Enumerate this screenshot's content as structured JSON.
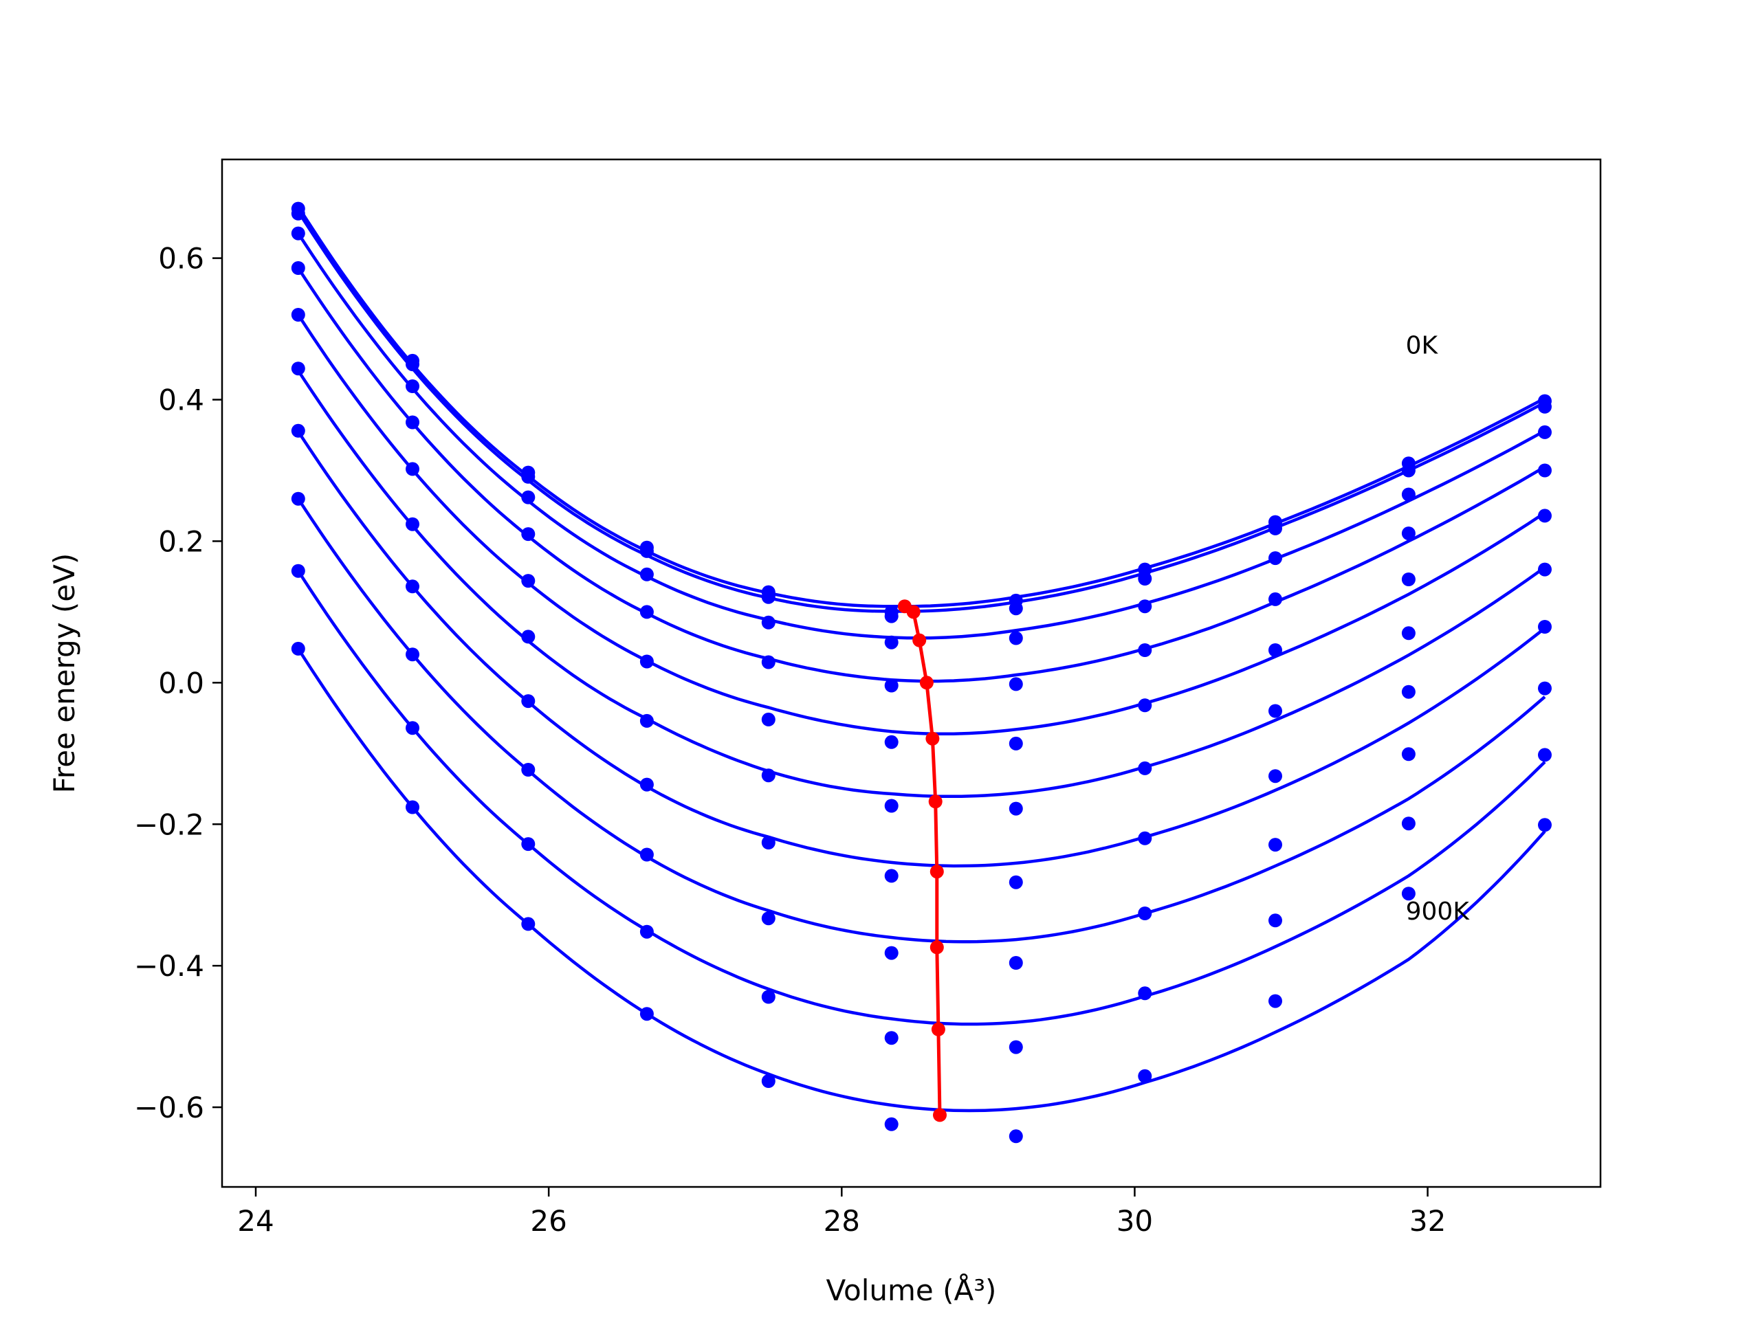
{
  "chart_data": {
    "type": "line",
    "xlabel": "Volume (Å³)",
    "ylabel": "Free energy (eV)",
    "xlim": [
      23.77,
      33.18
    ],
    "ylim": [
      -0.7126,
      0.7395
    ],
    "xticks": [
      24,
      26,
      28,
      30,
      32
    ],
    "yticks": [
      -0.6,
      -0.4,
      -0.2,
      0.0,
      0.2,
      0.4,
      0.6
    ],
    "xtick_labels": [
      "24",
      "26",
      "28",
      "30",
      "32"
    ],
    "ytick_labels": [
      "−0.6",
      "−0.4",
      "−0.2",
      "0.0",
      "0.2",
      "0.4",
      "0.6"
    ],
    "grid": false,
    "colors": {
      "curve": "#0000ff",
      "minimum_path": "#ff0000",
      "frame": "#000000"
    },
    "annotations": [
      {
        "text": "0K",
        "x": 31.85,
        "y": 0.465
      },
      {
        "text": "900K",
        "x": 31.85,
        "y": -0.335
      }
    ],
    "volumes": [
      24.29,
      25.07,
      25.86,
      26.67,
      27.5,
      28.34,
      29.19,
      30.07,
      30.96,
      31.87,
      32.8
    ],
    "series": [
      {
        "values": [
          0.67,
          0.455,
          0.297,
          0.191,
          0.128,
          0.1,
          0.116,
          0.16,
          0.227,
          0.31,
          0.398
        ],
        "fit": [
          0.673,
          0.45,
          0.292,
          0.186,
          0.127,
          0.108,
          0.121,
          0.162,
          0.225,
          0.306,
          0.402
        ],
        "min": [
          28.43,
          0.108
        ]
      },
      {
        "values": [
          0.663,
          0.45,
          0.291,
          0.186,
          0.121,
          0.094,
          0.105,
          0.147,
          0.218,
          0.3,
          0.39
        ],
        "fit": [
          0.666,
          0.444,
          0.286,
          0.18,
          0.12,
          0.101,
          0.114,
          0.155,
          0.219,
          0.3,
          0.396
        ],
        "min": [
          28.49,
          0.1
        ]
      },
      {
        "values": [
          0.635,
          0.419,
          0.262,
          0.153,
          0.085,
          0.057,
          0.063,
          0.108,
          0.176,
          0.266,
          0.354
        ],
        "fit": [
          0.635,
          0.416,
          0.257,
          0.15,
          0.089,
          0.064,
          0.074,
          0.112,
          0.175,
          0.257,
          0.356
        ],
        "min": [
          28.53,
          0.06
        ]
      },
      {
        "values": [
          0.586,
          0.368,
          0.21,
          0.1,
          0.029,
          -0.004,
          -0.002,
          0.046,
          0.118,
          0.211,
          0.3
        ],
        "fit": [
          0.586,
          0.367,
          0.207,
          0.098,
          0.034,
          0.004,
          0.011,
          0.048,
          0.114,
          0.2,
          0.305
        ],
        "min": [
          28.58,
          0.0
        ]
      },
      {
        "values": [
          0.52,
          0.302,
          0.144,
          0.03,
          -0.052,
          -0.084,
          -0.086,
          -0.032,
          0.046,
          0.146,
          0.236
        ],
        "fit": [
          0.52,
          0.301,
          0.141,
          0.031,
          -0.035,
          -0.069,
          -0.066,
          -0.029,
          0.037,
          0.125,
          0.24
        ],
        "min": [
          28.62,
          -0.079
        ]
      },
      {
        "values": [
          0.444,
          0.224,
          0.065,
          -0.054,
          -0.131,
          -0.174,
          -0.178,
          -0.121,
          -0.04,
          0.07,
          0.16
        ],
        "fit": [
          0.441,
          0.222,
          0.059,
          -0.051,
          -0.125,
          -0.157,
          -0.156,
          -0.119,
          -0.053,
          0.039,
          0.163
        ],
        "min": [
          28.64,
          -0.168
        ]
      },
      {
        "values": [
          0.356,
          0.136,
          -0.026,
          -0.144,
          -0.226,
          -0.273,
          -0.282,
          -0.22,
          -0.132,
          -0.013,
          0.079
        ],
        "fit": [
          0.355,
          0.136,
          -0.027,
          -0.147,
          -0.218,
          -0.254,
          -0.255,
          -0.218,
          -0.152,
          -0.057,
          0.077
        ],
        "min": [
          28.65,
          -0.267
        ]
      },
      {
        "values": [
          0.26,
          0.04,
          -0.123,
          -0.243,
          -0.333,
          -0.382,
          -0.396,
          -0.326,
          -0.229,
          -0.101,
          -0.008
        ],
        "fit": [
          0.26,
          0.04,
          -0.124,
          -0.246,
          -0.322,
          -0.36,
          -0.363,
          -0.326,
          -0.259,
          -0.164,
          -0.02
        ],
        "min": [
          28.65,
          -0.374
        ]
      },
      {
        "values": [
          0.158,
          -0.064,
          -0.228,
          -0.352,
          -0.444,
          -0.502,
          -0.515,
          -0.439,
          -0.336,
          -0.199,
          -0.102
        ],
        "fit": [
          0.158,
          -0.064,
          -0.228,
          -0.35,
          -0.433,
          -0.475,
          -0.48,
          -0.443,
          -0.373,
          -0.273,
          -0.112
        ],
        "min": [
          28.66,
          -0.49
        ]
      },
      {
        "values": [
          0.048,
          -0.176,
          -0.341,
          -0.468,
          -0.563,
          -0.624,
          -0.641,
          -0.556,
          -0.45,
          -0.298,
          -0.201
        ],
        "fit": [
          0.048,
          -0.176,
          -0.341,
          -0.468,
          -0.553,
          -0.597,
          -0.602,
          -0.565,
          -0.494,
          -0.391,
          -0.21
        ],
        "min": [
          28.67,
          -0.611
        ]
      }
    ],
    "minimum_path": {
      "x": [
        28.43,
        28.49,
        28.53,
        28.58,
        28.62,
        28.64,
        28.65,
        28.65,
        28.66,
        28.67
      ],
      "y": [
        0.108,
        0.1,
        0.06,
        0.0,
        -0.079,
        -0.168,
        -0.267,
        -0.374,
        -0.49,
        -0.611
      ]
    }
  }
}
